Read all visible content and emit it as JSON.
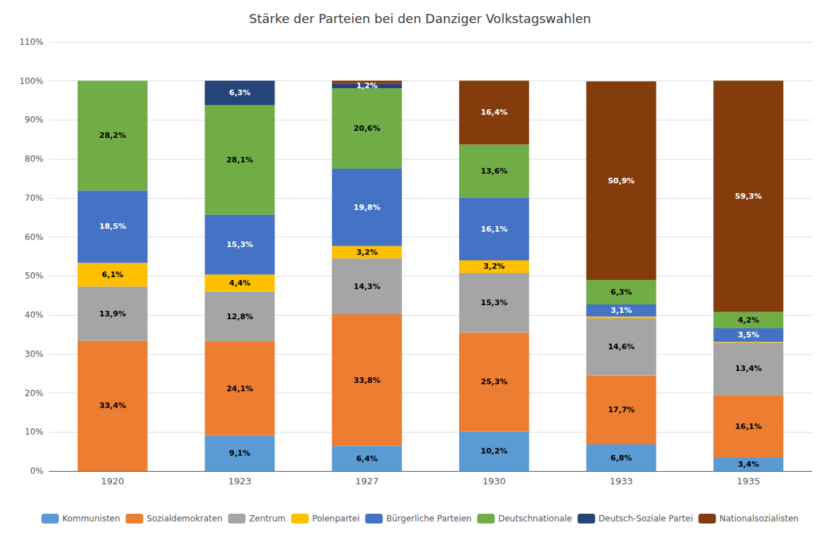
{
  "chart_data": {
    "type": "bar",
    "stacked": true,
    "title": "Stärke der Parteien bei den Danziger Volkstagswahlen",
    "categories": [
      "1920",
      "1923",
      "1927",
      "1930",
      "1933",
      "1935"
    ],
    "series": [
      {
        "name": "Kommunisten",
        "color": "#5B9BD5",
        "values": [
          0.0,
          9.1,
          6.4,
          10.2,
          6.8,
          3.4
        ],
        "value_labels": [
          null,
          "9,1%",
          "6,4%",
          "10,2%",
          "6,8%",
          "3,4%"
        ]
      },
      {
        "name": "Sozialdemokraten",
        "color": "#ED7D31",
        "values": [
          33.4,
          24.1,
          33.8,
          25.3,
          17.7,
          16.1
        ],
        "value_labels": [
          "33,4%",
          "24,1%",
          "33,8%",
          "25,3%",
          "17,7%",
          "16,1%"
        ]
      },
      {
        "name": "Zentrum",
        "color": "#A5A5A5",
        "values": [
          13.9,
          12.8,
          14.3,
          15.3,
          14.6,
          13.4
        ],
        "value_labels": [
          "13,9%",
          "12,8%",
          "14,3%",
          "15,3%",
          "14,6%",
          "13,4%"
        ]
      },
      {
        "name": "Polenpartei",
        "color": "#FFC000",
        "values": [
          6.1,
          4.4,
          3.2,
          3.2,
          0.5,
          0.2
        ],
        "value_labels": [
          "6,1%",
          "4,4%",
          "3,2%",
          "3,2%",
          null,
          null
        ]
      },
      {
        "name": "Bürgerliche Parteien",
        "color": "#4472C4",
        "values": [
          18.5,
          15.3,
          19.8,
          16.1,
          3.1,
          3.5
        ],
        "value_labels": [
          "18,5%",
          "15,3%",
          "19,8%",
          "16,1%",
          "3,1%",
          "3,5%"
        ]
      },
      {
        "name": "Deutschnationale",
        "color": "#70AD47",
        "values": [
          28.2,
          28.1,
          20.6,
          13.6,
          6.3,
          4.2
        ],
        "value_labels": [
          "28,2%",
          "28,1%",
          "20,6%",
          "13,6%",
          "6,3%",
          "4,2%"
        ]
      },
      {
        "name": "Deutsch-Soziale Partei",
        "color": "#264478",
        "values": [
          0.0,
          6.3,
          1.2,
          0.0,
          0.0,
          0.0
        ],
        "value_labels": [
          null,
          "6,3%",
          "1,2%",
          null,
          null,
          null
        ]
      },
      {
        "name": "Nationalsozialisten",
        "color": "#843C0C",
        "values": [
          0.0,
          0.0,
          0.8,
          16.4,
          50.9,
          59.3
        ],
        "value_labels": [
          null,
          null,
          null,
          "16,4%",
          "50,9%",
          "59,3%"
        ]
      }
    ],
    "ylim": [
      0,
      110
    ],
    "yticks": [
      {
        "value": 0,
        "label": "0%"
      },
      {
        "value": 10,
        "label": "10%"
      },
      {
        "value": 20,
        "label": "20%"
      },
      {
        "value": 30,
        "label": "30%"
      },
      {
        "value": 40,
        "label": "40%"
      },
      {
        "value": 50,
        "label": "50%"
      },
      {
        "value": 60,
        "label": "60%"
      },
      {
        "value": 70,
        "label": "70%"
      },
      {
        "value": 80,
        "label": "80%"
      },
      {
        "value": 90,
        "label": "90%"
      },
      {
        "value": 100,
        "label": "100%"
      },
      {
        "value": 110,
        "label": "110%"
      }
    ],
    "grid": true,
    "legend": "bottom",
    "data_labels": true
  }
}
